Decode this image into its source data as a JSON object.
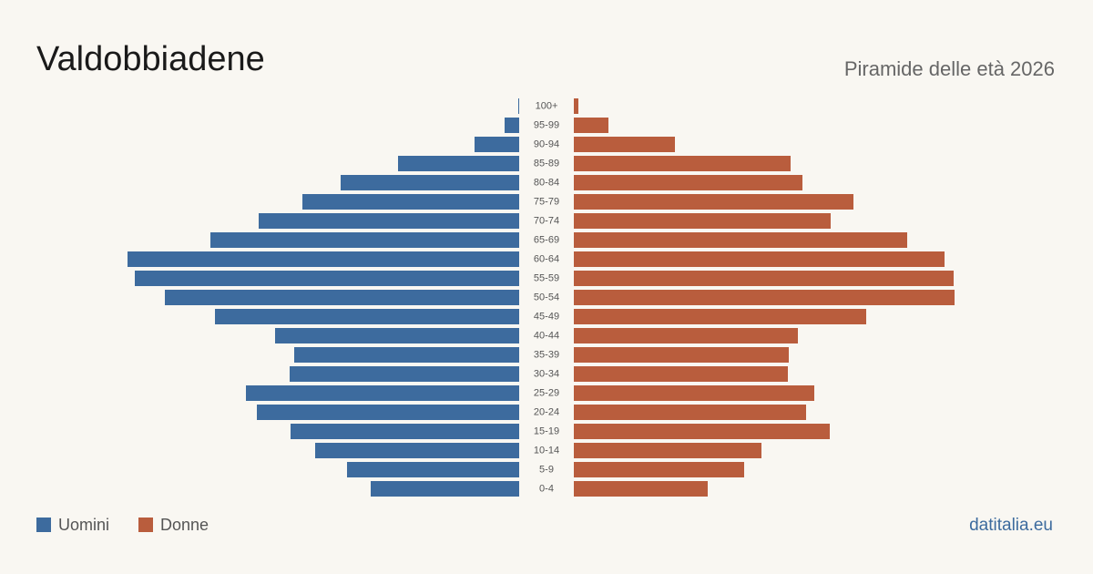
{
  "chart_data": {
    "type": "pyramid",
    "title": "Valdobbiadene",
    "subtitle": "Piramide delle età 2026",
    "source": "datitalia.eu",
    "categories": [
      "100+",
      "95-99",
      "90-94",
      "85-89",
      "80-84",
      "75-79",
      "70-74",
      "65-69",
      "60-64",
      "55-59",
      "50-54",
      "45-49",
      "40-44",
      "35-39",
      "30-34",
      "25-29",
      "20-24",
      "15-19",
      "10-14",
      "5-9",
      "0-4"
    ],
    "series": [
      {
        "name": "Uomini",
        "color": "#3d6b9e",
        "values": [
          1,
          16,
          49,
          133,
          196,
          238,
          286,
          339,
          430,
          422,
          389,
          334,
          268,
          247,
          252,
          300,
          288,
          251,
          224,
          189,
          163
        ]
      },
      {
        "name": "Donne",
        "color": "#b95d3d",
        "values": [
          5,
          38,
          111,
          238,
          251,
          307,
          282,
          366,
          407,
          417,
          418,
          321,
          246,
          236,
          235,
          264,
          255,
          281,
          206,
          187,
          147
        ]
      }
    ]
  }
}
